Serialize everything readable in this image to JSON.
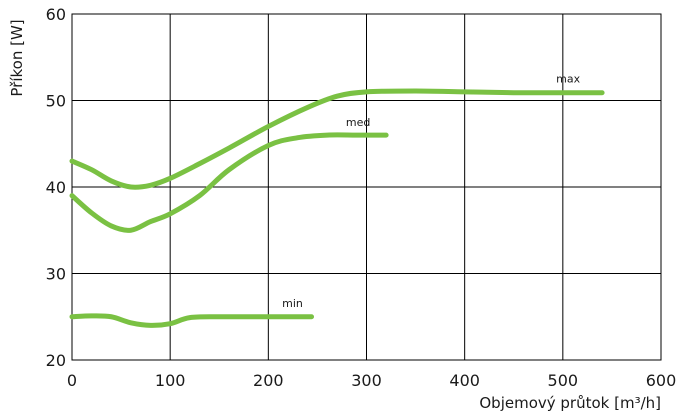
{
  "chart_data": {
    "type": "line",
    "xlabel": "Objemový průtok [m³/h]",
    "ylabel": "Příkon [W]",
    "xlim": [
      0,
      600
    ],
    "ylim": [
      20,
      60
    ],
    "xticks": [
      0,
      100,
      200,
      300,
      400,
      500,
      600
    ],
    "yticks": [
      20,
      30,
      40,
      50,
      60
    ],
    "grid": true,
    "line_color": "#7ac143",
    "series": [
      {
        "name": "max",
        "x": [
          0,
          20,
          40,
          60,
          80,
          100,
          130,
          160,
          200,
          240,
          270,
          300,
          350,
          400,
          450,
          500,
          540
        ],
        "y": [
          43,
          42,
          40.7,
          40,
          40.2,
          41,
          42.7,
          44.5,
          47,
          49.2,
          50.5,
          51,
          51.1,
          51,
          50.9,
          50.9,
          50.9
        ]
      },
      {
        "name": "med",
        "x": [
          0,
          20,
          40,
          60,
          80,
          100,
          130,
          160,
          200,
          230,
          260,
          290,
          320
        ],
        "y": [
          39,
          37,
          35.5,
          35,
          36,
          36.9,
          39,
          42,
          44.8,
          45.7,
          46,
          46,
          46
        ]
      },
      {
        "name": "min",
        "x": [
          0,
          20,
          40,
          60,
          80,
          100,
          120,
          150,
          200,
          244
        ],
        "y": [
          25,
          25.1,
          25,
          24.3,
          24,
          24.2,
          24.9,
          25,
          25,
          25
        ]
      }
    ]
  }
}
